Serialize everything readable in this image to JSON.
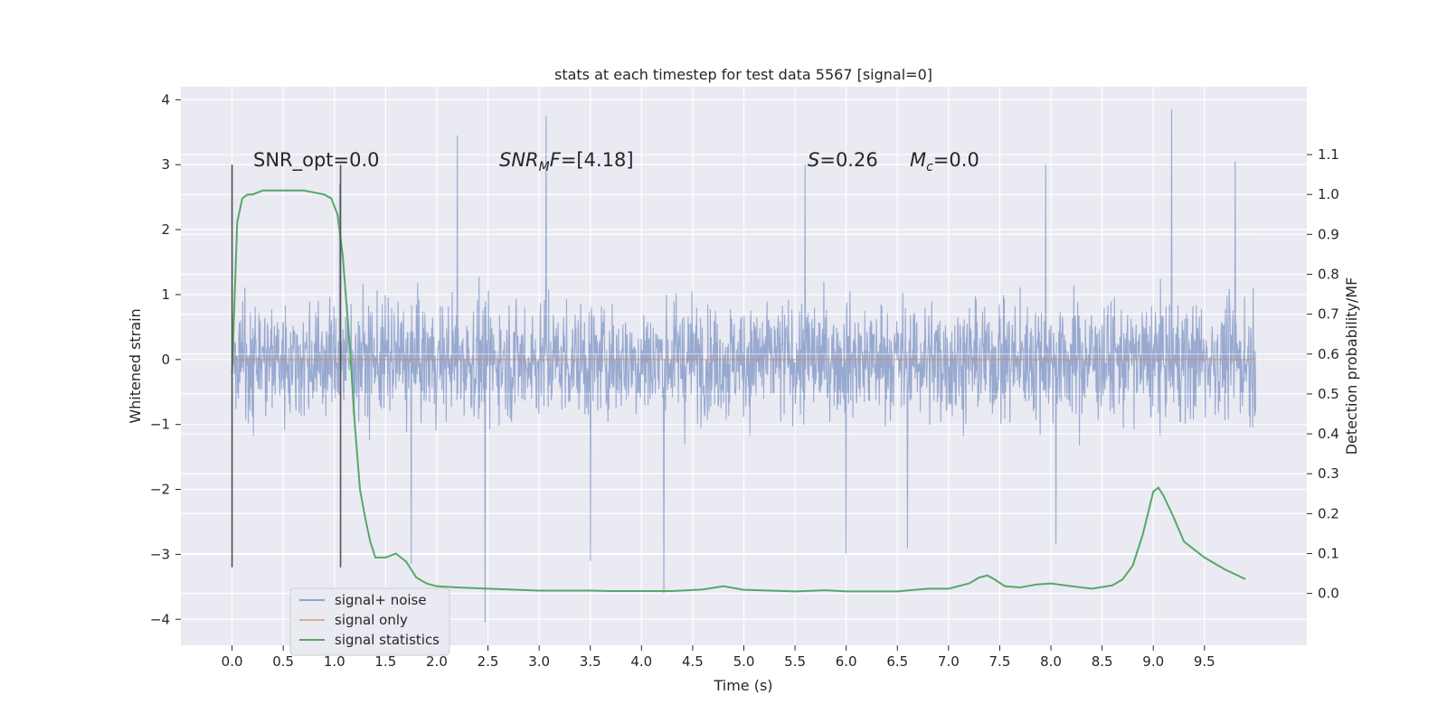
{
  "chart_data": {
    "type": "line",
    "title": "stats at each timestep for test data 5567 [signal=0]",
    "xlabel": "Time (s)",
    "ylabel": "Whitened strain",
    "y2label": "Detection probability/MF",
    "xlim": [
      -0.5,
      10.5
    ],
    "ylim": [
      -4.4,
      4.2
    ],
    "y2lim": [
      -0.13,
      1.27
    ],
    "x_ticks": [
      0.0,
      0.5,
      1.0,
      1.5,
      2.0,
      2.5,
      3.0,
      3.5,
      4.0,
      4.5,
      5.0,
      5.5,
      6.0,
      6.5,
      7.0,
      7.5,
      8.0,
      8.5,
      9.0,
      9.5
    ],
    "x_tick_labels": [
      "0.0",
      "0.5",
      "1.0",
      "1.5",
      "2.0",
      "2.5",
      "3.0",
      "3.5",
      "4.0",
      "4.5",
      "5.0",
      "5.5",
      "6.0",
      "6.5",
      "7.0",
      "7.5",
      "8.0",
      "8.5",
      "9.0",
      "9.5"
    ],
    "y_ticks": [
      -4,
      -3,
      -2,
      -1,
      0,
      1,
      2,
      3,
      4
    ],
    "y_tick_labels": [
      "−4",
      "−3",
      "−2",
      "−1",
      "0",
      "1",
      "2",
      "3",
      "4"
    ],
    "y2_ticks": [
      0.0,
      0.1,
      0.2,
      0.3,
      0.4,
      0.5,
      0.6,
      0.7,
      0.8,
      0.9,
      1.0,
      1.1
    ],
    "y2_tick_labels": [
      "0.0",
      "0.1",
      "0.2",
      "0.3",
      "0.4",
      "0.5",
      "0.6",
      "0.7",
      "0.8",
      "0.9",
      "1.0",
      "1.1"
    ],
    "grid": true,
    "legend_position": "bottom-left",
    "annotations": {
      "snr_opt": "SNR_opt=0.0",
      "snr_mf_prefix": "SNR",
      "snr_mf_sub": "M",
      "snr_mf_suffix": "F=[4.18]",
      "s_prefix": "S",
      "s_suffix": "=0.26",
      "mc_prefix": "M",
      "mc_sub": "c",
      "mc_suffix": "=0.0"
    },
    "vertical_markers": [
      0.0,
      1.06
    ],
    "vertical_marker_range": [
      -3.2,
      3.0
    ],
    "series": [
      {
        "name": "signal+ noise",
        "color": "#8fa2cc",
        "axis": "left",
        "x_range": [
          0.0,
          10.0
        ],
        "typical_range": [
          -1.5,
          1.5
        ],
        "extremes": [
          {
            "x": 0.0,
            "y": 2.9
          },
          {
            "x": 1.05,
            "y": 2.7
          },
          {
            "x": 2.2,
            "y": 3.45
          },
          {
            "x": 2.47,
            "y": -4.05
          },
          {
            "x": 3.07,
            "y": 3.75
          },
          {
            "x": 3.5,
            "y": -3.1
          },
          {
            "x": 4.22,
            "y": -3.6
          },
          {
            "x": 1.75,
            "y": -3.15
          },
          {
            "x": 5.6,
            "y": 3.0
          },
          {
            "x": 6.0,
            "y": -3.0
          },
          {
            "x": 6.6,
            "y": -2.9
          },
          {
            "x": 7.95,
            "y": 3.0
          },
          {
            "x": 8.05,
            "y": -2.85
          },
          {
            "x": 9.18,
            "y": 3.85
          },
          {
            "x": 9.8,
            "y": 3.05
          }
        ]
      },
      {
        "name": "signal only",
        "color": "#dd8452",
        "axis": "left",
        "x": [
          0.0,
          10.0
        ],
        "y": [
          0.0,
          0.0
        ]
      },
      {
        "name": "signal statistics",
        "color": "#55a868",
        "axis": "right",
        "x": [
          0.0,
          0.05,
          0.1,
          0.15,
          0.2,
          0.3,
          0.5,
          0.7,
          0.9,
          0.97,
          1.03,
          1.08,
          1.15,
          1.2,
          1.25,
          1.3,
          1.35,
          1.4,
          1.45,
          1.5,
          1.6,
          1.7,
          1.8,
          1.9,
          2.0,
          2.2,
          2.5,
          3.0,
          3.5,
          3.7,
          4.0,
          4.3,
          4.6,
          4.8,
          5.0,
          5.5,
          5.8,
          6.0,
          6.5,
          6.8,
          7.0,
          7.2,
          7.3,
          7.38,
          7.45,
          7.55,
          7.7,
          7.85,
          8.0,
          8.2,
          8.4,
          8.6,
          8.7,
          8.8,
          8.9,
          9.0,
          9.05,
          9.1,
          9.2,
          9.3,
          9.5,
          9.7,
          9.9
        ],
        "y": [
          0.55,
          0.93,
          0.99,
          1.0,
          1.0,
          1.01,
          1.01,
          1.01,
          1.0,
          0.99,
          0.95,
          0.85,
          0.62,
          0.42,
          0.26,
          0.19,
          0.13,
          0.09,
          0.09,
          0.09,
          0.1,
          0.08,
          0.04,
          0.025,
          0.018,
          0.015,
          0.012,
          0.007,
          0.007,
          0.006,
          0.006,
          0.006,
          0.01,
          0.018,
          0.009,
          0.005,
          0.008,
          0.005,
          0.005,
          0.012,
          0.012,
          0.025,
          0.04,
          0.045,
          0.035,
          0.018,
          0.015,
          0.022,
          0.025,
          0.018,
          0.012,
          0.02,
          0.035,
          0.07,
          0.15,
          0.255,
          0.265,
          0.245,
          0.19,
          0.13,
          0.09,
          0.06,
          0.036
        ]
      }
    ]
  }
}
